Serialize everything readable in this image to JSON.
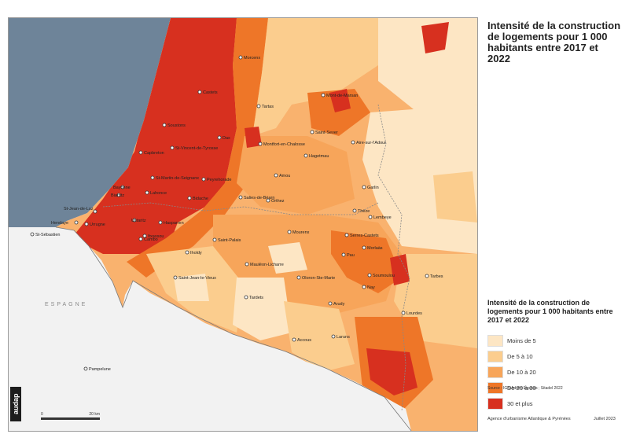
{
  "title": "Intensité de la construction de logements pour 1 000 habitants entre 2017 et 2022",
  "legend": {
    "title": "Intensité de la construction de logements pour 1 000 habitants entre 2017 et 2022",
    "items": [
      {
        "label": "Moins de 5",
        "color": "#fde6c4"
      },
      {
        "label": "De 5 à 10",
        "color": "#fbcd8e"
      },
      {
        "label": "De 10 à 20",
        "color": "#f7a55a"
      },
      {
        "label": "De 20 à 30",
        "color": "#ee7628"
      },
      {
        "label": "30 et plus",
        "color": "#d7301f"
      }
    ]
  },
  "source": "Source : IGN Admin Express ; Sitadel 2022",
  "footer": {
    "agency": "Agence d'urbanisme Atlantique & Pyrénées",
    "date": "Juillet 2023"
  },
  "logo_text": "audap",
  "scale": {
    "zero": "0",
    "max": "20 km"
  },
  "country_label": "ESPAGNE",
  "colors": {
    "sea": "#6e8499",
    "outside": "#f2f2f2"
  },
  "cities": [
    {
      "name": "Morcenx"
    },
    {
      "name": "Castets"
    },
    {
      "name": "Tartas"
    },
    {
      "name": "Mont-de-Marsan"
    },
    {
      "name": "Soustons"
    },
    {
      "name": "Saint-Sever"
    },
    {
      "name": "Dax"
    },
    {
      "name": "Montfort-en-Chalosse"
    },
    {
      "name": "St-Vincent-de-Tyrosse"
    },
    {
      "name": "Aire-sur-l'Adour"
    },
    {
      "name": "Capbreton"
    },
    {
      "name": "Hagetmau"
    },
    {
      "name": "St-Martin-de-Seignanx"
    },
    {
      "name": "Amou"
    },
    {
      "name": "Peyrehorade"
    },
    {
      "name": "Bayonne"
    },
    {
      "name": "Biarritz"
    },
    {
      "name": "Garlin"
    },
    {
      "name": "Lahonce"
    },
    {
      "name": "Bidache"
    },
    {
      "name": "Salies-de-Béarn"
    },
    {
      "name": "Orthez"
    },
    {
      "name": "St-Jean-de-Luz"
    },
    {
      "name": "Thèze"
    },
    {
      "name": "Lembeye"
    },
    {
      "name": "Hendaye"
    },
    {
      "name": "Ustaritz"
    },
    {
      "name": "Hasparren"
    },
    {
      "name": "Urrugne"
    },
    {
      "name": "St-Sébastien"
    },
    {
      "name": "Serres-Castets"
    },
    {
      "name": "Cambo"
    },
    {
      "name": "Mourenx"
    },
    {
      "name": "Saint-Palais"
    },
    {
      "name": "Itxassou"
    },
    {
      "name": "Morlaàs"
    },
    {
      "name": "Pau"
    },
    {
      "name": "Iholdy"
    },
    {
      "name": "Mauléon-Licharre"
    },
    {
      "name": "Saint-Jean-le-Vieux"
    },
    {
      "name": "Oloron-Ste-Marie"
    },
    {
      "name": "Nay"
    },
    {
      "name": "Soumoulou"
    },
    {
      "name": "Tarbes"
    },
    {
      "name": "Tardets"
    },
    {
      "name": "Arudy"
    },
    {
      "name": "Lourdes"
    },
    {
      "name": "Accous"
    },
    {
      "name": "Laruns"
    },
    {
      "name": "Pampelune"
    }
  ]
}
